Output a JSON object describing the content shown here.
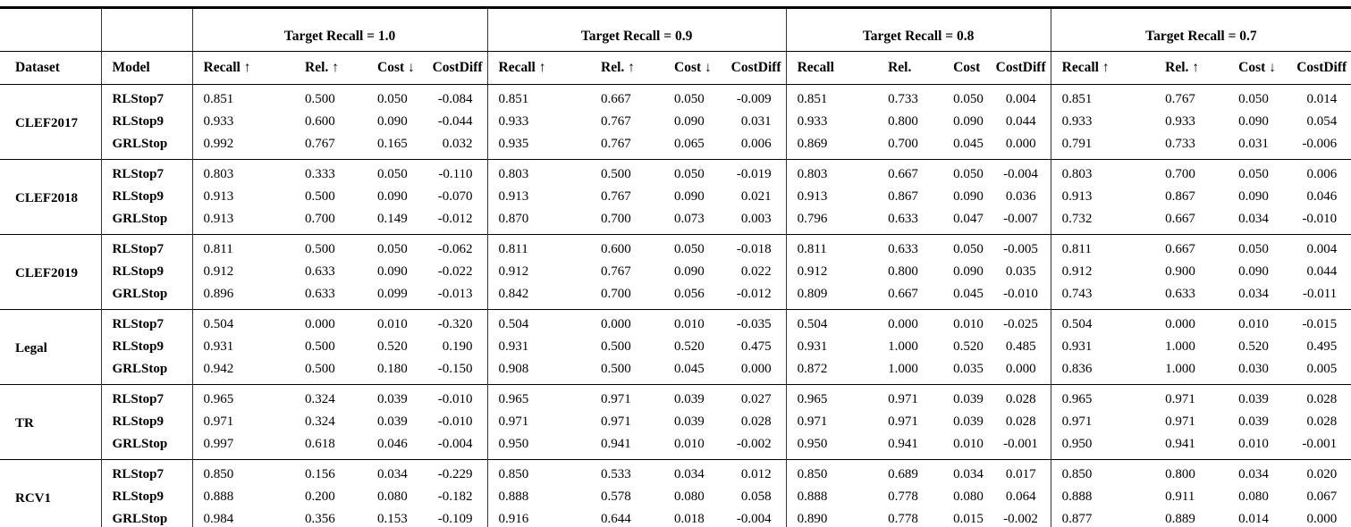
{
  "colors": {
    "background": "#ffffff",
    "text": "#000000",
    "rule": "#000000"
  },
  "table": {
    "dataset_header": "Dataset",
    "model_header": "Model",
    "groups": [
      {
        "title": "Target Recall = 1.0",
        "cols": [
          "Recall ↑",
          "Rel. ↑",
          "Cost ↓",
          "CostDiff"
        ]
      },
      {
        "title": "Target Recall = 0.9",
        "cols": [
          "Recall ↑",
          "Rel. ↑",
          "Cost ↓",
          "CostDiff"
        ]
      },
      {
        "title": "Target Recall = 0.8",
        "cols": [
          "Recall",
          "Rel.",
          "Cost",
          "CostDiff"
        ]
      },
      {
        "title": "Target Recall = 0.7",
        "cols": [
          "Recall ↑",
          "Rel. ↑",
          "Cost ↓",
          "CostDiff"
        ]
      }
    ],
    "blocks": [
      {
        "dataset": "CLEF2017",
        "rows": [
          {
            "model": "RLStop7",
            "values": [
              "0.851",
              "0.500",
              "0.050",
              "-0.084",
              "0.851",
              "0.667",
              "0.050",
              "-0.009",
              "0.851",
              "0.733",
              "0.050",
              "0.004",
              "0.851",
              "0.767",
              "0.050",
              "0.014"
            ]
          },
          {
            "model": "RLStop9",
            "values": [
              "0.933",
              "0.600",
              "0.090",
              "-0.044",
              "0.933",
              "0.767",
              "0.090",
              "0.031",
              "0.933",
              "0.800",
              "0.090",
              "0.044",
              "0.933",
              "0.933",
              "0.090",
              "0.054"
            ]
          },
          {
            "model": "GRLStop",
            "values": [
              "0.992",
              "0.767",
              "0.165",
              "0.032",
              "0.935",
              "0.767",
              "0.065",
              "0.006",
              "0.869",
              "0.700",
              "0.045",
              "0.000",
              "0.791",
              "0.733",
              "0.031",
              "-0.006"
            ]
          }
        ]
      },
      {
        "dataset": "CLEF2018",
        "rows": [
          {
            "model": "RLStop7",
            "values": [
              "0.803",
              "0.333",
              "0.050",
              "-0.110",
              "0.803",
              "0.500",
              "0.050",
              "-0.019",
              "0.803",
              "0.667",
              "0.050",
              "-0.004",
              "0.803",
              "0.700",
              "0.050",
              "0.006"
            ]
          },
          {
            "model": "RLStop9",
            "values": [
              "0.913",
              "0.500",
              "0.090",
              "-0.070",
              "0.913",
              "0.767",
              "0.090",
              "0.021",
              "0.913",
              "0.867",
              "0.090",
              "0.036",
              "0.913",
              "0.867",
              "0.090",
              "0.046"
            ]
          },
          {
            "model": "GRLStop",
            "values": [
              "0.913",
              "0.700",
              "0.149",
              "-0.012",
              "0.870",
              "0.700",
              "0.073",
              "0.003",
              "0.796",
              "0.633",
              "0.047",
              "-0.007",
              "0.732",
              "0.667",
              "0.034",
              "-0.010"
            ]
          }
        ]
      },
      {
        "dataset": "CLEF2019",
        "rows": [
          {
            "model": "RLStop7",
            "values": [
              "0.811",
              "0.500",
              "0.050",
              "-0.062",
              "0.811",
              "0.600",
              "0.050",
              "-0.018",
              "0.811",
              "0.633",
              "0.050",
              "-0.005",
              "0.811",
              "0.667",
              "0.050",
              "0.004"
            ]
          },
          {
            "model": "RLStop9",
            "values": [
              "0.912",
              "0.633",
              "0.090",
              "-0.022",
              "0.912",
              "0.767",
              "0.090",
              "0.022",
              "0.912",
              "0.800",
              "0.090",
              "0.035",
              "0.912",
              "0.900",
              "0.090",
              "0.044"
            ]
          },
          {
            "model": "GRLStop",
            "values": [
              "0.896",
              "0.633",
              "0.099",
              "-0.013",
              "0.842",
              "0.700",
              "0.056",
              "-0.012",
              "0.809",
              "0.667",
              "0.045",
              "-0.010",
              "0.743",
              "0.633",
              "0.034",
              "-0.011"
            ]
          }
        ]
      },
      {
        "dataset": "Legal",
        "rows": [
          {
            "model": "RLStop7",
            "values": [
              "0.504",
              "0.000",
              "0.010",
              "-0.320",
              "0.504",
              "0.000",
              "0.010",
              "-0.035",
              "0.504",
              "0.000",
              "0.010",
              "-0.025",
              "0.504",
              "0.000",
              "0.010",
              "-0.015"
            ]
          },
          {
            "model": "RLStop9",
            "values": [
              "0.931",
              "0.500",
              "0.520",
              "0.190",
              "0.931",
              "0.500",
              "0.520",
              "0.475",
              "0.931",
              "1.000",
              "0.520",
              "0.485",
              "0.931",
              "1.000",
              "0.520",
              "0.495"
            ]
          },
          {
            "model": "GRLStop",
            "values": [
              "0.942",
              "0.500",
              "0.180",
              "-0.150",
              "0.908",
              "0.500",
              "0.045",
              "0.000",
              "0.872",
              "1.000",
              "0.035",
              "0.000",
              "0.836",
              "1.000",
              "0.030",
              "0.005"
            ]
          }
        ]
      },
      {
        "dataset": "TR",
        "rows": [
          {
            "model": "RLStop7",
            "values": [
              "0.965",
              "0.324",
              "0.039",
              "-0.010",
              "0.965",
              "0.971",
              "0.039",
              "0.027",
              "0.965",
              "0.971",
              "0.039",
              "0.028",
              "0.965",
              "0.971",
              "0.039",
              "0.028"
            ]
          },
          {
            "model": "RLStop9",
            "values": [
              "0.971",
              "0.324",
              "0.039",
              "-0.010",
              "0.971",
              "0.971",
              "0.039",
              "0.028",
              "0.971",
              "0.971",
              "0.039",
              "0.028",
              "0.971",
              "0.971",
              "0.039",
              "0.028"
            ]
          },
          {
            "model": "GRLStop",
            "values": [
              "0.997",
              "0.618",
              "0.046",
              "-0.004",
              "0.950",
              "0.941",
              "0.010",
              "-0.002",
              "0.950",
              "0.941",
              "0.010",
              "-0.001",
              "0.950",
              "0.941",
              "0.010",
              "-0.001"
            ]
          }
        ]
      },
      {
        "dataset": "RCV1",
        "rows": [
          {
            "model": "RLStop7",
            "values": [
              "0.850",
              "0.156",
              "0.034",
              "-0.229",
              "0.850",
              "0.533",
              "0.034",
              "0.012",
              "0.850",
              "0.689",
              "0.034",
              "0.017",
              "0.850",
              "0.800",
              "0.034",
              "0.020"
            ]
          },
          {
            "model": "RLStop9",
            "values": [
              "0.888",
              "0.200",
              "0.080",
              "-0.182",
              "0.888",
              "0.578",
              "0.080",
              "0.058",
              "0.888",
              "0.778",
              "0.080",
              "0.064",
              "0.888",
              "0.911",
              "0.080",
              "0.067"
            ]
          },
          {
            "model": "GRLStop",
            "values": [
              "0.984",
              "0.356",
              "0.153",
              "-0.109",
              "0.916",
              "0.644",
              "0.018",
              "-0.004",
              "0.890",
              "0.778",
              "0.015",
              "-0.002",
              "0.877",
              "0.889",
              "0.014",
              "0.000"
            ]
          }
        ]
      }
    ]
  }
}
